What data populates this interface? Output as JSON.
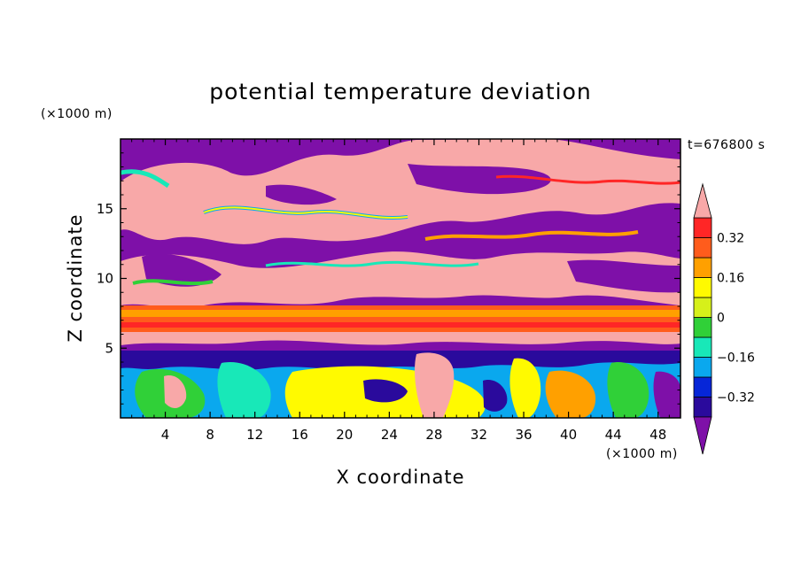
{
  "chart_data": {
    "type": "heatmap",
    "title": "potential temperature deviation",
    "xlabel": "X coordinate",
    "ylabel": "Z coordinate",
    "x_unit": "(×1000 m)",
    "y_unit": "(×1000 m)",
    "time_label": "t=676800 s",
    "xlim": [
      0,
      50
    ],
    "ylim": [
      0,
      20
    ],
    "x_ticks": [
      4,
      8,
      12,
      16,
      20,
      24,
      28,
      32,
      36,
      40,
      44,
      48
    ],
    "y_ticks": [
      5,
      10,
      15
    ],
    "colorbar": {
      "levels": [
        -0.4,
        -0.32,
        -0.24,
        -0.16,
        -0.08,
        0,
        0.08,
        0.16,
        0.24,
        0.32,
        0.4
      ],
      "labeled_levels": [
        0.32,
        0.16,
        0,
        -0.16,
        -0.32
      ],
      "labels": [
        "0.32",
        "0.16",
        "0",
        "−0.16",
        "−0.32"
      ],
      "colors": [
        "#7e10a8",
        "#2a0a9c",
        "#0626d8",
        "#0aa8ee",
        "#18e8b8",
        "#30d038",
        "#d6f01a",
        "#fffa00",
        "#ffa000",
        "#ff5c1c",
        "#ff2626",
        "#f8a8a8"
      ],
      "extend": "both"
    }
  }
}
